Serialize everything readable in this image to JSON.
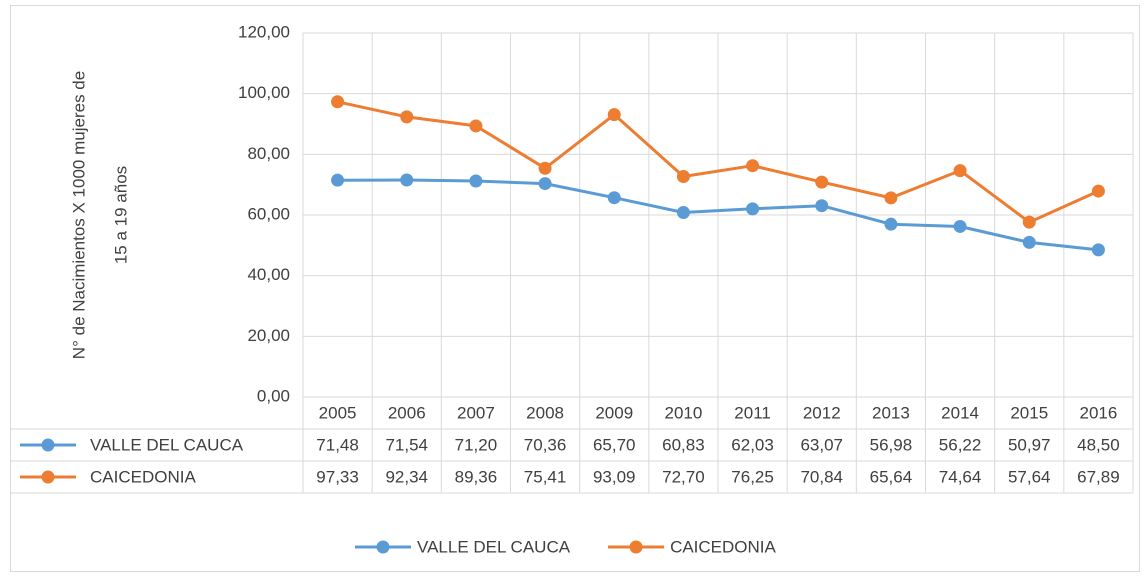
{
  "chart_data": {
    "type": "line",
    "ylabel": [
      "N° de Nacimientos X 1000 mujeres de",
      "15 a 19 años"
    ],
    "categories": [
      "2005",
      "2006",
      "2007",
      "2008",
      "2009",
      "2010",
      "2011",
      "2012",
      "2013",
      "2014",
      "2015",
      "2016"
    ],
    "series": [
      {
        "name": "VALLE DEL CAUCA",
        "color": "#5b9bd5",
        "values": [
          71.48,
          71.54,
          71.2,
          70.36,
          65.7,
          60.83,
          62.03,
          63.07,
          56.98,
          56.22,
          50.97,
          48.5
        ],
        "value_labels": [
          "71,48",
          "71,54",
          "71,20",
          "70,36",
          "65,70",
          "60,83",
          "62,03",
          "63,07",
          "56,98",
          "56,22",
          "50,97",
          "48,50"
        ]
      },
      {
        "name": "CAICEDONIA",
        "color": "#ed7d31",
        "values": [
          97.33,
          92.34,
          89.36,
          75.41,
          93.09,
          72.7,
          76.25,
          70.84,
          65.64,
          74.64,
          57.64,
          67.89
        ],
        "value_labels": [
          "97,33",
          "92,34",
          "89,36",
          "75,41",
          "93,09",
          "72,70",
          "76,25",
          "70,84",
          "65,64",
          "74,64",
          "57,64",
          "67,89"
        ]
      }
    ],
    "ylim": [
      0,
      120
    ],
    "yticks": [
      {
        "value": 0,
        "label": "0,00"
      },
      {
        "value": 20,
        "label": "20,00"
      },
      {
        "value": 40,
        "label": "40,00"
      },
      {
        "value": 60,
        "label": "60,00"
      },
      {
        "value": 80,
        "label": "80,00"
      },
      {
        "value": 100,
        "label": "100,00"
      },
      {
        "value": 120,
        "label": "120,00"
      }
    ],
    "grid": true,
    "legend": "bottom",
    "data_table": true
  }
}
